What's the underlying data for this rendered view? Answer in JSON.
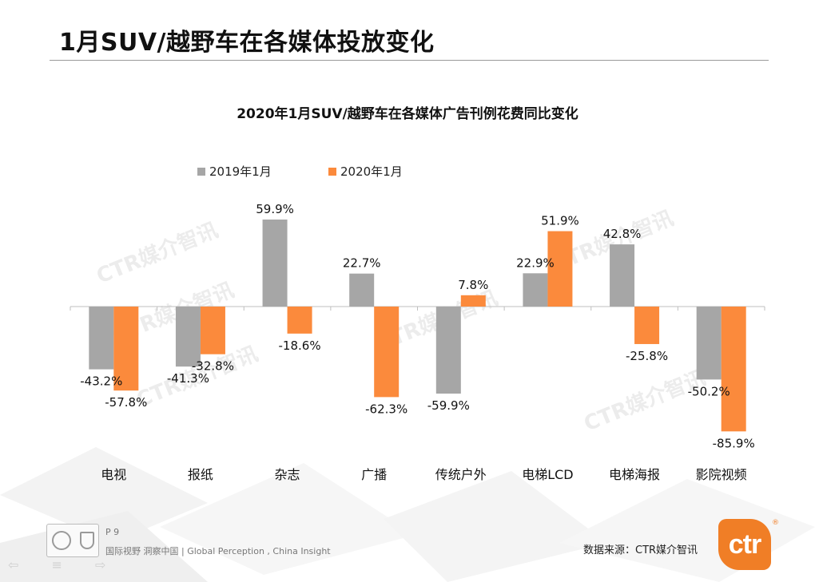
{
  "page": {
    "title": "1月SUV/越野车在各媒体投放变化",
    "page_number": "P 9",
    "tagline": "国际视野  洞察中国 |  Global  Perception , China  Insight",
    "source": "数据来源：CTR媒介智讯",
    "logo_text": "ctr",
    "logo_mark": "®",
    "watermark": "CTR媒介智讯"
  },
  "chart_data": {
    "type": "bar",
    "title": "2020年1月SUV/越野车在各媒体广告刊例花费同比变化",
    "categories": [
      "电视",
      "报纸",
      "杂志",
      "广播",
      "传统户外",
      "电梯LCD",
      "电梯海报",
      "影院视频"
    ],
    "series": [
      {
        "name": "2019年1月",
        "color": "#a6a6a6",
        "values": [
          -43.2,
          -41.3,
          59.9,
          22.7,
          -59.9,
          22.9,
          42.8,
          -50.2
        ],
        "labels": [
          "-43.2%",
          "-41.3%",
          "59.9%",
          "22.7%",
          "-59.9%",
          "22.9%",
          "42.8%",
          "-50.2%"
        ]
      },
      {
        "name": "2020年1月",
        "color": "#fb8a3c",
        "values": [
          -57.8,
          -32.8,
          -18.6,
          -62.3,
          7.8,
          51.9,
          -25.8,
          -85.9
        ],
        "labels": [
          "-57.8%",
          "-32.8%",
          "-18.6%",
          "-62.3%",
          "7.8%",
          "51.9%",
          "-25.8%",
          "-85.9%"
        ]
      }
    ],
    "ylim": [
      -90,
      65
    ],
    "xlabel": "",
    "ylabel": "",
    "grid": false,
    "legend": "top-left"
  }
}
